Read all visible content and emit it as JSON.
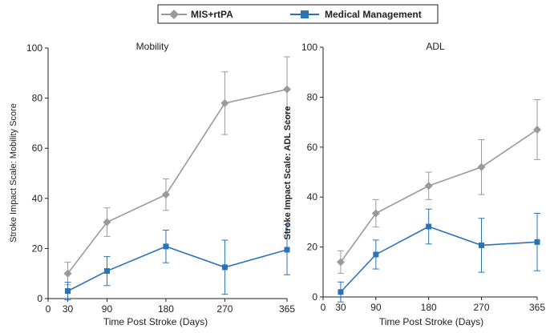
{
  "legend": {
    "items": [
      {
        "label": "MIS+rtPA",
        "color": "#9a9a9a",
        "marker": "diamond"
      },
      {
        "label": "Medical Management",
        "color": "#2a73b8",
        "marker": "square"
      }
    ]
  },
  "chart_data": [
    {
      "type": "line",
      "title": "Mobility",
      "xlabel": "Time Post Stroke (Days)",
      "ylabel": "Stroke Impact Scale: Mobility Score",
      "xlim": [
        0,
        365
      ],
      "ylim": [
        0,
        100
      ],
      "xticks": [
        0,
        30,
        90,
        180,
        270,
        365
      ],
      "yticks": [
        0,
        20,
        40,
        60,
        80,
        100
      ],
      "grid": false,
      "legend_position": "top-center",
      "series": [
        {
          "name": "MIS+rtPA",
          "x": [
            30,
            90,
            180,
            270,
            365
          ],
          "y": [
            10,
            30.5,
            41.5,
            78,
            83.5
          ],
          "err": [
            4.5,
            5.7,
            6.3,
            12.5,
            13
          ]
        },
        {
          "name": "Medical Management",
          "x": [
            30,
            90,
            180,
            270,
            365
          ],
          "y": [
            3,
            11,
            20.8,
            12.5,
            19.5
          ],
          "err": [
            3.5,
            5.8,
            6.5,
            10.8,
            10
          ]
        }
      ]
    },
    {
      "type": "line",
      "title": "ADL",
      "xlabel": "Time Post Stroke (Days)",
      "ylabel": "Stroke Impact Scale: ADL Score",
      "xlim": [
        0,
        365
      ],
      "ylim": [
        0,
        100
      ],
      "xticks": [
        0,
        30,
        90,
        180,
        270,
        365
      ],
      "yticks": [
        0,
        20,
        40,
        60,
        80,
        100
      ],
      "grid": false,
      "legend_position": "top-center",
      "series": [
        {
          "name": "MIS+rtPA",
          "x": [
            30,
            90,
            180,
            270,
            365
          ],
          "y": [
            14,
            33.5,
            44.5,
            52,
            67
          ],
          "err": [
            4.5,
            5.5,
            5.5,
            11,
            12
          ]
        },
        {
          "name": "Medical Management",
          "x": [
            30,
            90,
            180,
            270,
            365
          ],
          "y": [
            2,
            17,
            28.2,
            20.7,
            22
          ],
          "err": [
            4,
            5.8,
            7,
            10.8,
            11.5
          ]
        }
      ]
    }
  ]
}
